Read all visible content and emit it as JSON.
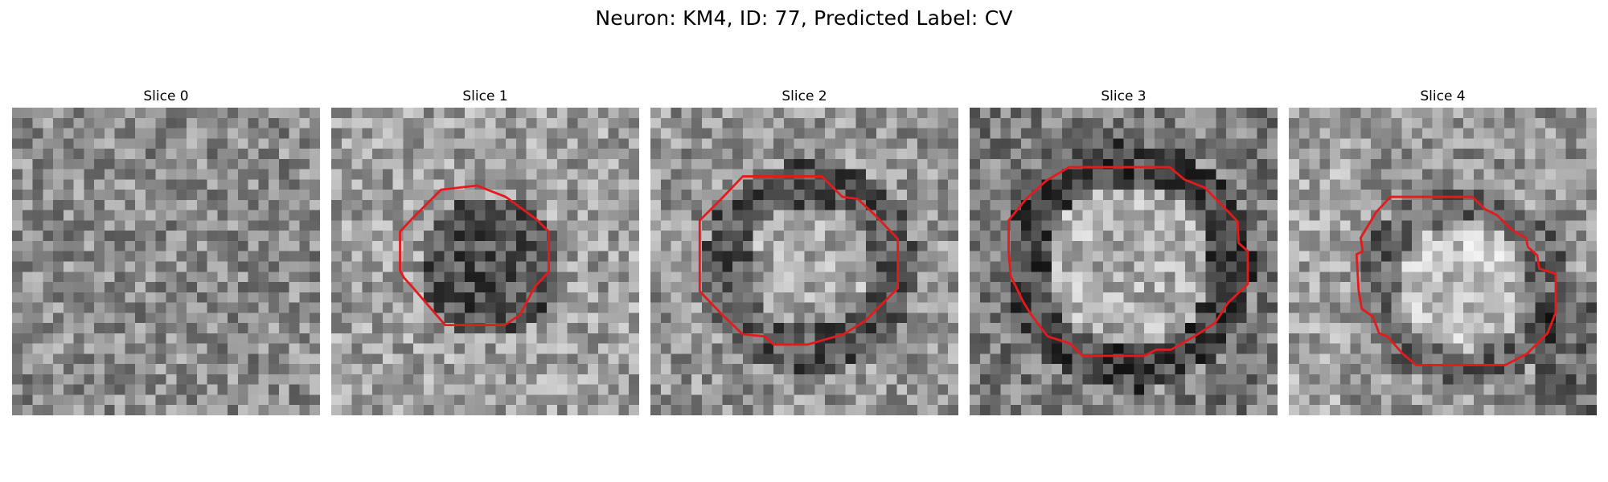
{
  "figure": {
    "title": "Neuron: KM4, ID: 77, Predicted Label: CV"
  },
  "slices": [
    {
      "title": "Slice 0",
      "grid": 30,
      "seed": 11,
      "mode": "noise",
      "contour_color": "#e41a1c",
      "contour": []
    },
    {
      "title": "Slice 1",
      "grid": 30,
      "seed": 23,
      "mode": "dark-disk",
      "contour_color": "#e41a1c",
      "contour": [
        [
          10.7,
          8.0
        ],
        [
          14.2,
          7.6
        ],
        [
          17.0,
          8.7
        ],
        [
          20.0,
          10.9
        ],
        [
          21.2,
          12.1
        ],
        [
          21.2,
          16.0
        ],
        [
          19.8,
          17.5
        ],
        [
          18.4,
          20.2
        ],
        [
          16.9,
          21.2
        ],
        [
          11.1,
          21.2
        ],
        [
          8.0,
          17.6
        ],
        [
          7.1,
          16.6
        ],
        [
          6.7,
          15.9
        ],
        [
          6.7,
          12.1
        ],
        [
          7.9,
          10.8
        ]
      ]
    },
    {
      "title": "Slice 2",
      "grid": 30,
      "seed": 37,
      "mode": "ring",
      "contour_color": "#e41a1c",
      "contour": [
        [
          9.0,
          6.7
        ],
        [
          16.7,
          6.7
        ],
        [
          18.7,
          8.7
        ],
        [
          20.2,
          8.9
        ],
        [
          22.0,
          10.6
        ],
        [
          24.1,
          12.8
        ],
        [
          24.1,
          17.6
        ],
        [
          20.9,
          20.8
        ],
        [
          18.8,
          22.1
        ],
        [
          15.3,
          23.1
        ],
        [
          12.0,
          23.1
        ],
        [
          11.1,
          22.3
        ],
        [
          9.0,
          22.1
        ],
        [
          7.0,
          20.2
        ],
        [
          4.8,
          17.9
        ],
        [
          4.8,
          11.0
        ],
        [
          6.9,
          8.9
        ]
      ]
    },
    {
      "title": "Slice 3",
      "grid": 30,
      "seed": 53,
      "mode": "ring-bright",
      "contour_color": "#e41a1c",
      "contour": [
        [
          9.7,
          5.8
        ],
        [
          19.5,
          5.8
        ],
        [
          20.9,
          7.0
        ],
        [
          22.9,
          7.8
        ],
        [
          24.3,
          9.2
        ],
        [
          26.1,
          11.1
        ],
        [
          26.2,
          13.2
        ],
        [
          27.1,
          14.0
        ],
        [
          27.1,
          17.2
        ],
        [
          25.2,
          19.0
        ],
        [
          23.9,
          21.0
        ],
        [
          21.9,
          22.3
        ],
        [
          19.6,
          23.6
        ],
        [
          18.2,
          23.6
        ],
        [
          17.0,
          24.2
        ],
        [
          11.0,
          24.2
        ],
        [
          9.8,
          23.0
        ],
        [
          7.6,
          22.3
        ],
        [
          6.0,
          20.2
        ],
        [
          5.2,
          18.9
        ],
        [
          4.0,
          16.4
        ],
        [
          3.8,
          14.0
        ],
        [
          3.8,
          11.0
        ],
        [
          5.5,
          8.9
        ],
        [
          7.5,
          7.1
        ]
      ]
    },
    {
      "title": "Slice 4",
      "grid": 30,
      "seed": 71,
      "mode": "bright-blob",
      "contour_color": "#e41a1c",
      "contour": [
        [
          9.9,
          8.7
        ],
        [
          17.9,
          8.7
        ],
        [
          19.1,
          9.9
        ],
        [
          20.3,
          10.5
        ],
        [
          21.7,
          11.9
        ],
        [
          23.1,
          12.7
        ],
        [
          23.3,
          13.6
        ],
        [
          24.2,
          14.4
        ],
        [
          24.4,
          15.7
        ],
        [
          26.0,
          16.2
        ],
        [
          26.0,
          20.0
        ],
        [
          25.2,
          22.0
        ],
        [
          23.2,
          24.0
        ],
        [
          21.1,
          25.1
        ],
        [
          12.4,
          25.1
        ],
        [
          11.1,
          24.0
        ],
        [
          9.6,
          22.3
        ],
        [
          8.8,
          22.0
        ],
        [
          8.2,
          20.4
        ],
        [
          7.1,
          19.6
        ],
        [
          6.8,
          17.8
        ],
        [
          6.6,
          14.3
        ],
        [
          7.2,
          14.0
        ],
        [
          7.0,
          12.7
        ],
        [
          8.5,
          10.2
        ]
      ]
    }
  ]
}
